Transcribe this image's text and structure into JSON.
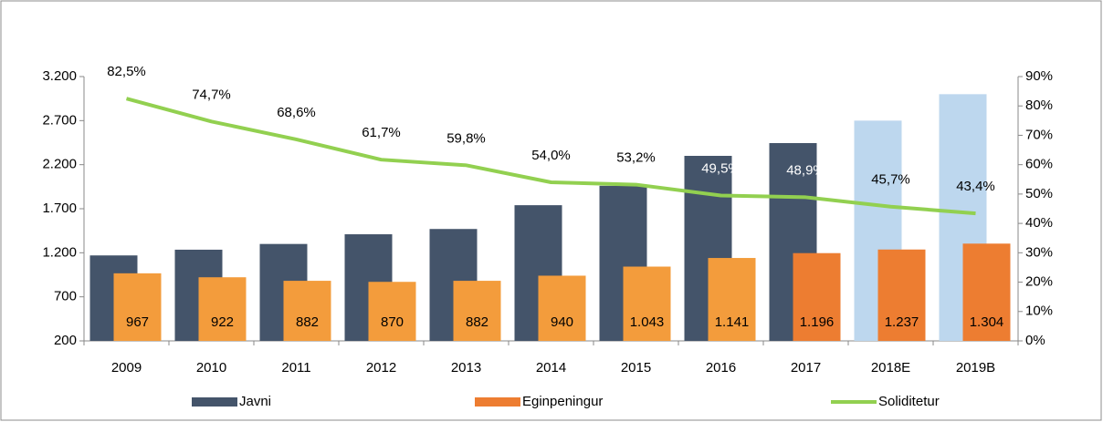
{
  "chart_data": {
    "type": "bar_line",
    "categories": [
      "2009",
      "2010",
      "2011",
      "2012",
      "2013",
      "2014",
      "2015",
      "2016",
      "2017",
      "2018E",
      "2019B"
    ],
    "series": [
      {
        "name": "Javni",
        "type": "bar",
        "color": "#44546a",
        "point_colors": [
          "#44546a",
          "#44546a",
          "#44546a",
          "#44546a",
          "#44546a",
          "#44546a",
          "#44546a",
          "#44546a",
          "#44546a",
          "#bdd7ee",
          "#bdd7ee"
        ],
        "values": [
          1170,
          1235,
          1300,
          1410,
          1470,
          1740,
          1960,
          2300,
          2445,
          2700,
          3000
        ]
      },
      {
        "name": "Eginpeningur",
        "type": "bar",
        "color": "#ed7d31",
        "point_colors": [
          "#f39c3c",
          "#f39c3c",
          "#f39c3c",
          "#f39c3c",
          "#f39c3c",
          "#f39c3c",
          "#f39c3c",
          "#f39c3c",
          "#ed7d31",
          "#ed7d31",
          "#ed7d31"
        ],
        "values": [
          967,
          922,
          882,
          870,
          882,
          940,
          1043,
          1141,
          1196,
          1237,
          1304
        ],
        "value_labels": [
          "967",
          "922",
          "882",
          "870",
          "882",
          "940",
          "1.043",
          "1.141",
          "1.196",
          "1.237",
          "1.304"
        ]
      },
      {
        "name": "Soliditetur",
        "type": "line",
        "axis": "y2",
        "color": "#92d050",
        "values": [
          82.5,
          74.7,
          68.6,
          61.7,
          59.8,
          54.0,
          53.2,
          49.5,
          48.9,
          45.7,
          43.4
        ],
        "value_labels": [
          "82,5%",
          "74,7%",
          "68,6%",
          "61,7%",
          "59,8%",
          "54,0%",
          "53,2%",
          "49,5%",
          "48,9%",
          "45,7%",
          "43,4%"
        ],
        "label_colors": [
          "#000000",
          "#000000",
          "#000000",
          "#000000",
          "#000000",
          "#000000",
          "#000000",
          "#ffffff",
          "#ffffff",
          "#000000",
          "#000000"
        ]
      }
    ],
    "ylim": [
      200,
      3200
    ],
    "yticks": [
      200,
      700,
      {
        "value": 1200,
        "label": "1.200"
      },
      {
        "value": 1700,
        "label": "1.700"
      },
      {
        "value": 2200,
        "label": "2.200"
      },
      {
        "value": 2700,
        "label": "2.700"
      },
      {
        "value": 3200,
        "label": "3.200"
      }
    ],
    "y2lim": [
      0,
      90
    ],
    "y2ticks": [
      {
        "value": 0,
        "label": "0%"
      },
      {
        "value": 10,
        "label": "10%"
      },
      {
        "value": 20,
        "label": "20%"
      },
      {
        "value": 30,
        "label": "30%"
      },
      {
        "value": 40,
        "label": "40%"
      },
      {
        "value": 50,
        "label": "50%"
      },
      {
        "value": 60,
        "label": "60%"
      },
      {
        "value": 70,
        "label": "70%"
      },
      {
        "value": 80,
        "label": "80%"
      },
      {
        "value": 90,
        "label": "90%"
      }
    ],
    "legend": "bottom",
    "grid": false
  }
}
